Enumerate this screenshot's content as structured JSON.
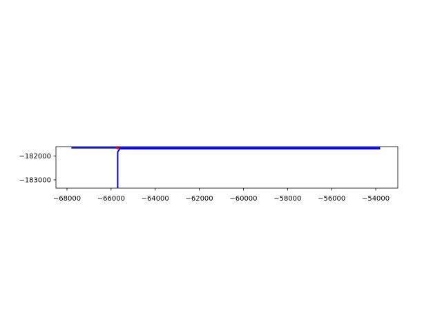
{
  "chart_data": {
    "type": "line",
    "title": "",
    "xlabel": "",
    "ylabel": "",
    "xlim": [
      -68500,
      -53000
    ],
    "ylim": [
      -183350,
      -181600
    ],
    "xticks": [
      -68000,
      -66000,
      -64000,
      -62000,
      -60000,
      -58000,
      -56000,
      -54000
    ],
    "xtick_labels": [
      "−68000",
      "−66000",
      "−64000",
      "−62000",
      "−60000",
      "−58000",
      "−56000",
      "−54000"
    ],
    "yticks": [
      -182000,
      -183000
    ],
    "ytick_labels": [
      "−182000",
      "−183000"
    ],
    "grid": false,
    "legend": "none",
    "series": [
      {
        "color": "#0000ff",
        "x": [
          -67800,
          -53800
        ],
        "y": [
          -181650,
          -181650
        ]
      },
      {
        "color": "#0000ff",
        "x": [
          -65700,
          -65700,
          -65600,
          -53800
        ],
        "y": [
          -183350,
          -181820,
          -181690,
          -181690
        ]
      },
      {
        "color": "#ff0000",
        "x": [
          -65700
        ],
        "y": [
          -181650
        ]
      }
    ]
  }
}
